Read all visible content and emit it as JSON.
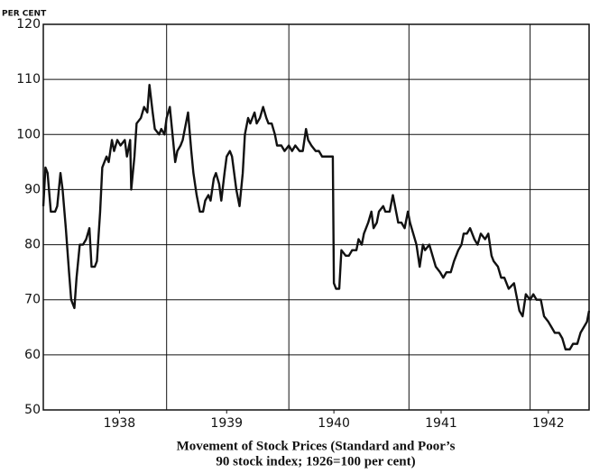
{
  "chart_data": {
    "type": "line",
    "title": [
      "Movement of Stock Prices (Standard and Poor’s",
      "90 stock index; 1926=100 per cent)"
    ],
    "y_label": "PER CENT",
    "xlim": [
      1937.29,
      1942.38
    ],
    "xticks": [
      1938,
      1939,
      1940,
      1941,
      1942
    ],
    "xgrid": [
      1938.44,
      1939.58,
      1940.7,
      1941.83
    ],
    "ylim": [
      50,
      120
    ],
    "yticks": [
      50,
      60,
      70,
      80,
      90,
      100,
      110,
      120
    ],
    "grid": true,
    "series": [
      {
        "color": "#111111",
        "x": [
          1937.29,
          1937.31,
          1937.33,
          1937.36,
          1937.4,
          1937.42,
          1937.45,
          1937.47,
          1937.5,
          1937.53,
          1937.55,
          1937.58,
          1937.6,
          1937.63,
          1937.66,
          1937.69,
          1937.72,
          1937.74,
          1937.77,
          1937.79,
          1937.82,
          1937.84,
          1937.88,
          1937.9,
          1937.93,
          1937.95,
          1937.98,
          1938.01,
          1938.05,
          1938.07,
          1938.1,
          1938.11,
          1938.14,
          1938.16,
          1938.2,
          1938.23,
          1938.26,
          1938.28,
          1938.31,
          1938.33,
          1938.37,
          1938.39,
          1938.42,
          1938.44,
          1938.47,
          1938.49,
          1938.52,
          1938.54,
          1938.57,
          1938.59,
          1938.62,
          1938.64,
          1938.67,
          1938.69,
          1938.72,
          1938.75,
          1938.78,
          1938.8,
          1938.83,
          1938.85,
          1938.88,
          1938.9,
          1938.93,
          1938.95,
          1938.98,
          1939.0,
          1939.03,
          1939.05,
          1939.09,
          1939.12,
          1939.15,
          1939.17,
          1939.2,
          1939.22,
          1939.26,
          1939.28,
          1939.31,
          1939.34,
          1939.37,
          1939.39,
          1939.42,
          1939.45,
          1939.47,
          1939.51,
          1939.54,
          1939.58,
          1939.61,
          1939.64,
          1939.68,
          1939.71,
          1939.74,
          1939.76,
          1939.79,
          1939.83,
          1939.86,
          1939.89,
          1939.93,
          1939.96,
          1939.99,
          1940.0,
          1940.02,
          1940.05,
          1940.07,
          1940.11,
          1940.14,
          1940.17,
          1940.21,
          1940.23,
          1940.26,
          1940.28,
          1940.32,
          1940.35,
          1940.37,
          1940.4,
          1940.42,
          1940.46,
          1940.48,
          1940.52,
          1940.55,
          1940.58,
          1940.6,
          1940.63,
          1940.66,
          1940.69,
          1940.71,
          1940.74,
          1940.77,
          1940.8,
          1940.83,
          1940.85,
          1940.89,
          1940.92,
          1940.95,
          1940.99,
          1941.02,
          1941.05,
          1941.09,
          1941.12,
          1941.16,
          1941.19,
          1941.21,
          1941.24,
          1941.27,
          1941.31,
          1941.34,
          1941.37,
          1941.41,
          1941.44,
          1941.47,
          1941.49,
          1941.53,
          1941.56,
          1941.59,
          1941.63,
          1941.68,
          1941.73,
          1941.76,
          1941.79,
          1941.83,
          1941.86,
          1941.89,
          1941.93,
          1941.96,
          1942.0,
          1942.03,
          1942.06,
          1942.1,
          1942.13,
          1942.16,
          1942.2,
          1942.23,
          1942.27,
          1942.3,
          1942.33,
          1942.36,
          1942.38
        ],
        "values": [
          87,
          94,
          93,
          86,
          86,
          87,
          93,
          90,
          83,
          75,
          70,
          68.5,
          74,
          80,
          80,
          81,
          83,
          76,
          76,
          77,
          86,
          94,
          96,
          95,
          99,
          97,
          99,
          98,
          99,
          96,
          99,
          90,
          96,
          102,
          103,
          105,
          104,
          109,
          104,
          101,
          100,
          101,
          100,
          103,
          105,
          101,
          95,
          97,
          98,
          99,
          102,
          104,
          97,
          93,
          89,
          86,
          86,
          88,
          89,
          88,
          92,
          93,
          91,
          88,
          93,
          96,
          97,
          96,
          90,
          87,
          93,
          100,
          103,
          102,
          104,
          102,
          103,
          105,
          103,
          102,
          102,
          100,
          98,
          98,
          97,
          98,
          97,
          98,
          97,
          97,
          101,
          99,
          98,
          97,
          97,
          96,
          96,
          96,
          96,
          73,
          72,
          72,
          79,
          78,
          78,
          79,
          79,
          81,
          80,
          82,
          84,
          86,
          83,
          84,
          86,
          87,
          86,
          86,
          89,
          86,
          84,
          84,
          83,
          86,
          84,
          82,
          80,
          76,
          80,
          79,
          80,
          78,
          76,
          75,
          74,
          75,
          75,
          77,
          79,
          80,
          82,
          82,
          83,
          81,
          80,
          82,
          81,
          82,
          78,
          77,
          76,
          74,
          74,
          72,
          73,
          68,
          67,
          71,
          70,
          71,
          70,
          70,
          67,
          66,
          65,
          64,
          64,
          63,
          61,
          61,
          62,
          62,
          64,
          65,
          66,
          68
        ]
      }
    ]
  }
}
